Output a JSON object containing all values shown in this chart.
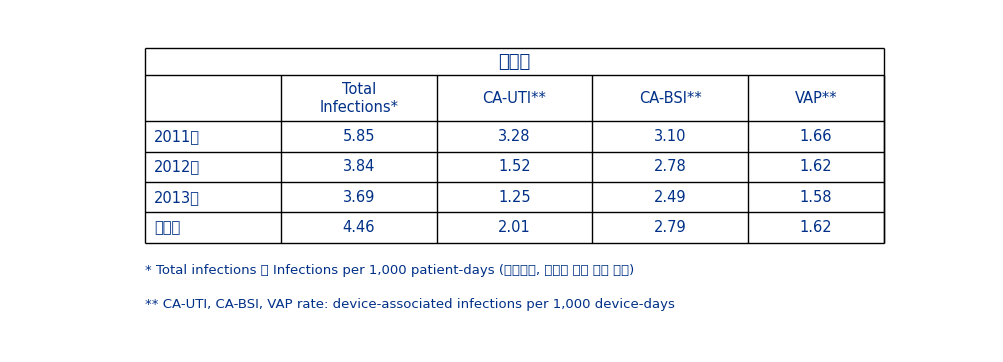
{
  "title": "감염률",
  "col_headers": [
    "",
    "Total\nInfections*",
    "CA-UTI**",
    "CA-BSI**",
    "VAP**"
  ],
  "rows": [
    [
      "2011년",
      "5.85",
      "3.28",
      "3.10",
      "1.66"
    ],
    [
      "2012년",
      "3.84",
      "1.52",
      "2.78",
      "1.62"
    ],
    [
      "2013년",
      "3.69",
      "1.25",
      "2.49",
      "1.58"
    ],
    [
      "연평균",
      "4.46",
      "2.01",
      "2.79",
      "1.62"
    ]
  ],
  "footnote1": "* Total infections ： Infections per 1,000 patient-days (기구관련, 비관련 감염 모두 포함)",
  "footnote2": "** CA-UTI, CA-BSI, VAP rate: device-associated infections per 1,000 device-days",
  "text_color": "#003087",
  "border_color": "#000000",
  "bg_color": "#ffffff",
  "title_fontsize": 13,
  "header_fontsize": 10.5,
  "cell_fontsize": 10.5,
  "footnote_fontsize": 9.5
}
